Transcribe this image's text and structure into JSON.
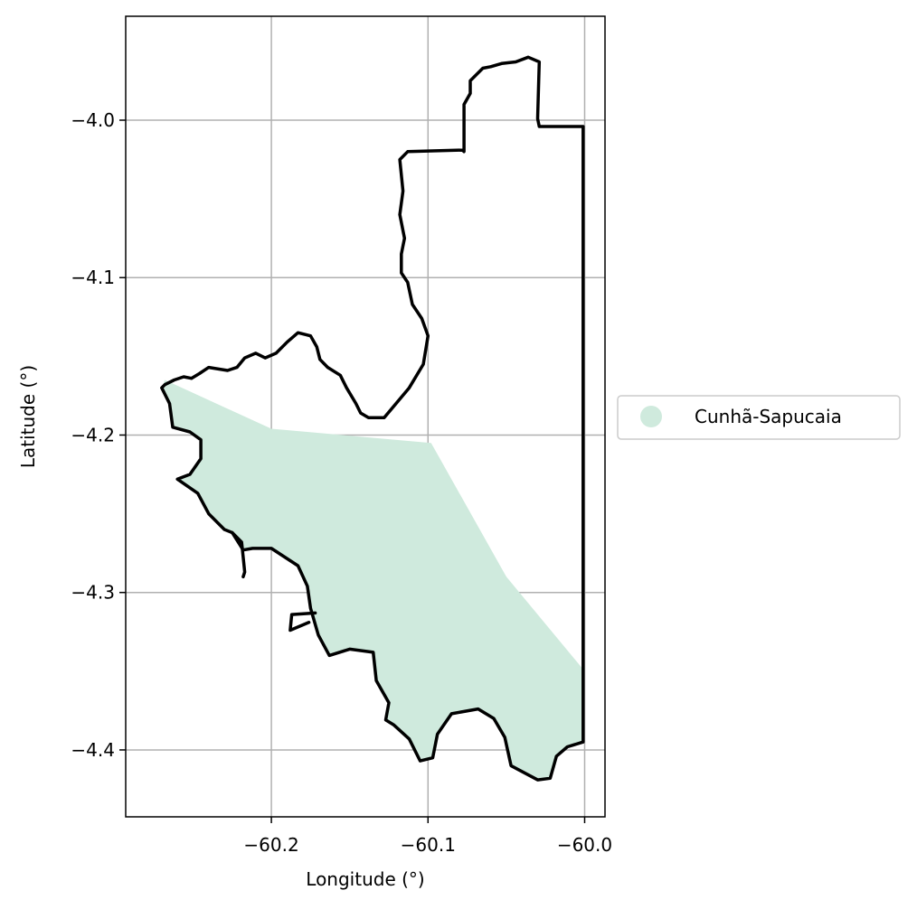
{
  "map": {
    "xlabel": "Longitude (°)",
    "ylabel": "Latitude (°)",
    "x_ticks": [
      {
        "value": -60.2,
        "label": "−60.2"
      },
      {
        "value": -60.1,
        "label": "−60.1"
      },
      {
        "value": -60.0,
        "label": "−60.0"
      }
    ],
    "y_ticks": [
      {
        "value": -4.0,
        "label": "−4.0"
      },
      {
        "value": -4.1,
        "label": "−4.1"
      },
      {
        "value": -4.2,
        "label": "−4.2"
      },
      {
        "value": -4.3,
        "label": "−4.3"
      },
      {
        "value": -4.4,
        "label": "−4.4"
      }
    ],
    "xlim": [
      -60.293,
      -59.987
    ],
    "ylim": [
      -4.4425,
      -3.934
    ],
    "grid": true,
    "legend": {
      "placement": "right",
      "entries": [
        {
          "label": "Cunhã-Sapucaia",
          "color": "#cfeadd",
          "marker": "circle"
        }
      ]
    },
    "colors": {
      "fill": "#cfeadd",
      "outline": "#000000",
      "grid": "#b0b0b0"
    },
    "region_fill": [
      [
        -60.268,
        -4.165
      ],
      [
        -60.2,
        -4.196
      ],
      [
        -60.098,
        -4.205
      ],
      [
        -60.05,
        -4.29
      ],
      [
        -60.0,
        -4.35
      ],
      [
        -60.0,
        -4.395
      ],
      [
        -60.005,
        -4.396
      ],
      [
        -60.011,
        -4.398
      ],
      [
        -60.018,
        -4.404
      ],
      [
        -60.022,
        -4.418
      ],
      [
        -60.03,
        -4.419
      ],
      [
        -60.047,
        -4.41
      ],
      [
        -60.051,
        -4.392
      ],
      [
        -60.058,
        -4.38
      ],
      [
        -60.068,
        -4.374
      ],
      [
        -60.085,
        -4.377
      ],
      [
        -60.094,
        -4.39
      ],
      [
        -60.097,
        -4.405
      ],
      [
        -60.105,
        -4.407
      ],
      [
        -60.112,
        -4.393
      ],
      [
        -60.122,
        -4.384
      ],
      [
        -60.127,
        -4.381
      ],
      [
        -60.125,
        -4.37
      ],
      [
        -60.133,
        -4.356
      ],
      [
        -60.135,
        -4.338
      ],
      [
        -60.15,
        -4.336
      ],
      [
        -60.163,
        -4.34
      ],
      [
        -60.17,
        -4.327
      ],
      [
        -60.175,
        -4.31
      ],
      [
        -60.177,
        -4.296
      ],
      [
        -60.183,
        -4.283
      ],
      [
        -60.2,
        -4.272
      ],
      [
        -60.212,
        -4.272
      ],
      [
        -60.218,
        -4.273
      ],
      [
        -60.225,
        -4.262
      ],
      [
        -60.23,
        -4.26
      ],
      [
        -60.24,
        -4.25
      ],
      [
        -60.247,
        -4.237
      ],
      [
        -60.26,
        -4.228
      ],
      [
        -60.252,
        -4.225
      ],
      [
        -60.245,
        -4.215
      ],
      [
        -60.245,
        -4.203
      ],
      [
        -60.252,
        -4.198
      ],
      [
        -60.263,
        -4.195
      ],
      [
        -60.265,
        -4.18
      ],
      [
        -60.27,
        -4.17
      ]
    ],
    "outline": [
      [
        -60.268,
        -4.168
      ],
      [
        -60.262,
        -4.165
      ],
      [
        -60.256,
        -4.163
      ],
      [
        -60.251,
        -4.164
      ],
      [
        -60.246,
        -4.161
      ],
      [
        -60.24,
        -4.157
      ],
      [
        -60.228,
        -4.159
      ],
      [
        -60.222,
        -4.157
      ],
      [
        -60.217,
        -4.151
      ],
      [
        -60.21,
        -4.148
      ],
      [
        -60.204,
        -4.151
      ],
      [
        -60.197,
        -4.148
      ],
      [
        -60.19,
        -4.141
      ],
      [
        -60.183,
        -4.135
      ],
      [
        -60.175,
        -4.137
      ],
      [
        -60.171,
        -4.144
      ],
      [
        -60.169,
        -4.152
      ],
      [
        -60.164,
        -4.157
      ],
      [
        -60.156,
        -4.162
      ],
      [
        -60.152,
        -4.17
      ],
      [
        -60.146,
        -4.18
      ],
      [
        -60.143,
        -4.186
      ],
      [
        -60.138,
        -4.189
      ],
      [
        -60.128,
        -4.189
      ],
      [
        -60.112,
        -4.17
      ],
      [
        -60.103,
        -4.155
      ],
      [
        -60.1,
        -4.137
      ],
      [
        -60.104,
        -4.126
      ],
      [
        -60.11,
        -4.117
      ],
      [
        -60.113,
        -4.103
      ],
      [
        -60.117,
        -4.097
      ],
      [
        -60.117,
        -4.085
      ],
      [
        -60.115,
        -4.075
      ],
      [
        -60.118,
        -4.06
      ],
      [
        -60.116,
        -4.045
      ],
      [
        -60.118,
        -4.025
      ],
      [
        -60.113,
        -4.02
      ],
      [
        -60.078,
        -4.019
      ],
      [
        -60.077,
        -4.02
      ],
      [
        -60.077,
        -3.99
      ],
      [
        -60.073,
        -3.983
      ],
      [
        -60.073,
        -3.975
      ],
      [
        -60.065,
        -3.967
      ],
      [
        -60.06,
        -3.966
      ],
      [
        -60.053,
        -3.964
      ],
      [
        -60.044,
        -3.963
      ],
      [
        -60.036,
        -3.96
      ],
      [
        -60.029,
        -3.963
      ],
      [
        -60.03,
        -3.999
      ],
      [
        -60.029,
        -4.004
      ],
      [
        -60.001,
        -4.004
      ],
      [
        -60.001,
        -4.395
      ],
      [
        -60.011,
        -4.398
      ],
      [
        -60.018,
        -4.404
      ],
      [
        -60.022,
        -4.418
      ],
      [
        -60.03,
        -4.419
      ],
      [
        -60.047,
        -4.41
      ],
      [
        -60.051,
        -4.392
      ],
      [
        -60.058,
        -4.38
      ],
      [
        -60.068,
        -4.374
      ],
      [
        -60.085,
        -4.377
      ],
      [
        -60.094,
        -4.39
      ],
      [
        -60.097,
        -4.405
      ],
      [
        -60.105,
        -4.407
      ],
      [
        -60.112,
        -4.393
      ],
      [
        -60.122,
        -4.384
      ],
      [
        -60.127,
        -4.381
      ],
      [
        -60.125,
        -4.37
      ],
      [
        -60.133,
        -4.356
      ],
      [
        -60.135,
        -4.338
      ],
      [
        -60.15,
        -4.336
      ],
      [
        -60.163,
        -4.34
      ],
      [
        -60.17,
        -4.327
      ],
      [
        -60.175,
        -4.31
      ],
      [
        -60.177,
        -4.296
      ],
      [
        -60.183,
        -4.283
      ],
      [
        -60.2,
        -4.272
      ],
      [
        -60.212,
        -4.272
      ],
      [
        -60.218,
        -4.273
      ],
      [
        -60.225,
        -4.262
      ],
      [
        -60.23,
        -4.26
      ],
      [
        -60.24,
        -4.25
      ],
      [
        -60.247,
        -4.237
      ],
      [
        -60.26,
        -4.228
      ],
      [
        -60.252,
        -4.225
      ],
      [
        -60.245,
        -4.215
      ],
      [
        -60.245,
        -4.203
      ],
      [
        -60.252,
        -4.198
      ],
      [
        -60.263,
        -4.195
      ],
      [
        -60.265,
        -4.18
      ],
      [
        -60.27,
        -4.17
      ],
      [
        -60.268,
        -4.168
      ]
    ],
    "inlets": [
      [
        [
          -60.225,
          -4.262
        ],
        [
          -60.219,
          -4.268
        ],
        [
          -60.217,
          -4.287
        ],
        [
          -60.218,
          -4.29
        ]
      ],
      [
        [
          -60.172,
          -4.313
        ],
        [
          -60.187,
          -4.314
        ],
        [
          -60.188,
          -4.324
        ],
        [
          -60.176,
          -4.319
        ]
      ]
    ]
  }
}
